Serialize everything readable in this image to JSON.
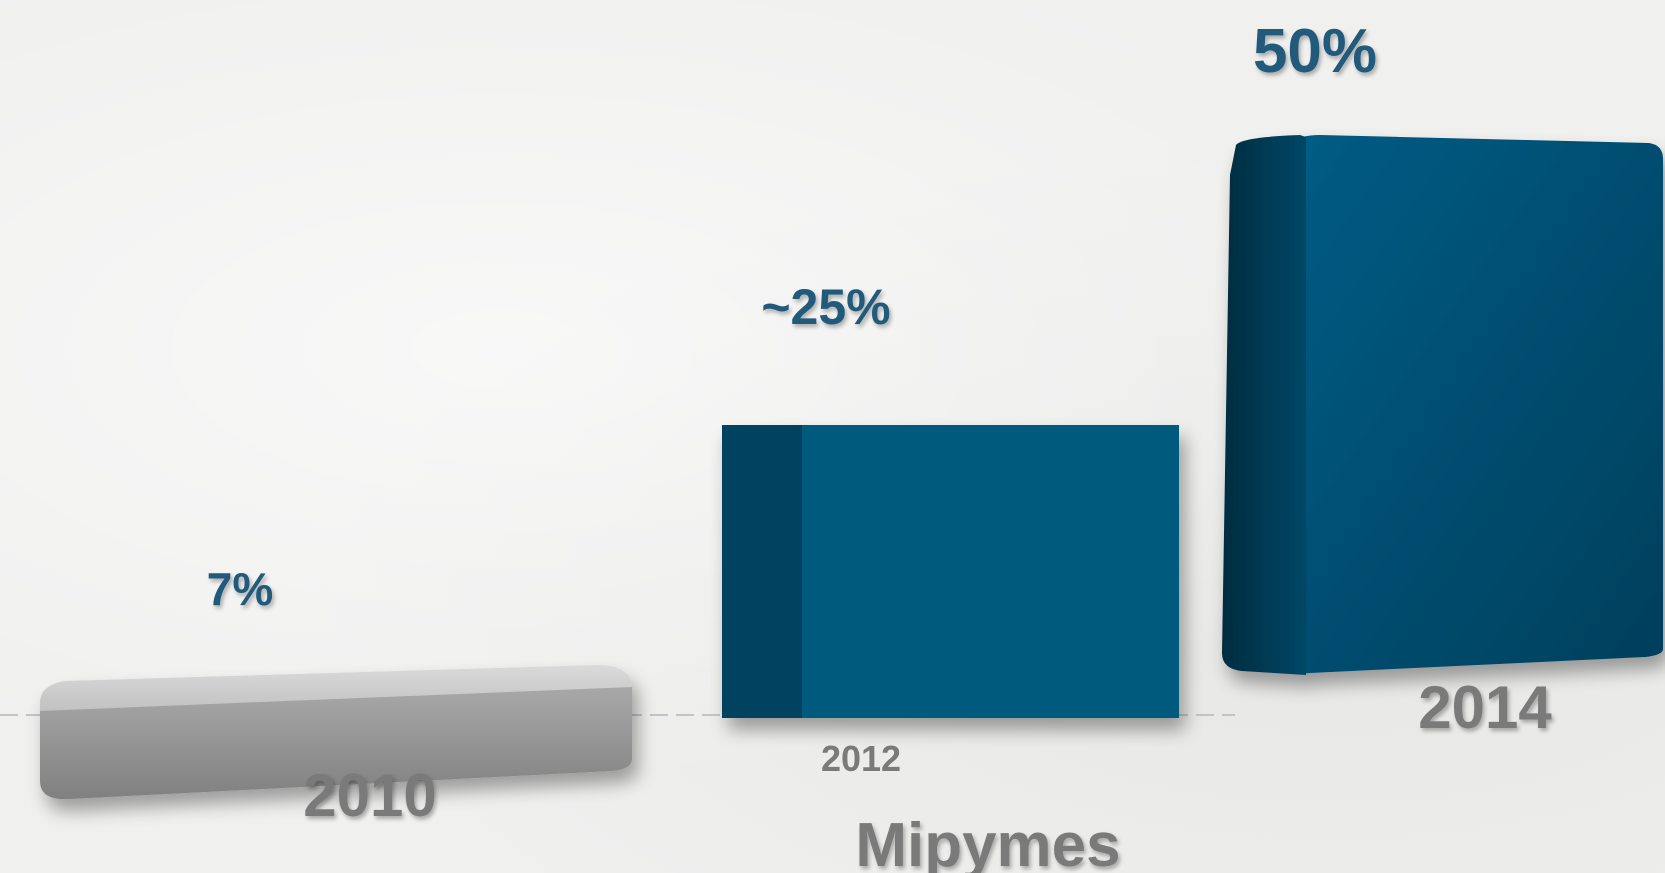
{
  "chart_data": {
    "type": "bar",
    "categories": [
      "2010",
      "2012",
      "2014"
    ],
    "values": [
      7,
      25,
      50
    ],
    "value_labels": [
      "7%",
      "~25%",
      "50%"
    ],
    "xlabel": "Mipymes",
    "ylabel": "",
    "ylim": [
      0,
      50
    ],
    "grid": false,
    "legend": "none",
    "colors": {
      "bar_2010": "#9a9a9a",
      "bar_2010_top": "#c9c9c9",
      "bar_2012": "#015a7e",
      "bar_2012_side": "#00435f",
      "bar_2014": "#024d70",
      "bar_2014_side": "#013750",
      "value_text": "#245a7c",
      "category_text": "#7a7a7a"
    }
  }
}
